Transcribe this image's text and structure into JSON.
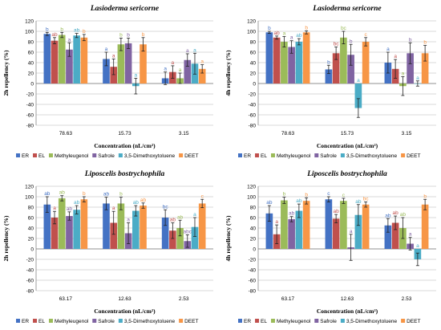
{
  "colors": [
    "#4472C4",
    "#C0504D",
    "#9BBB59",
    "#8064A2",
    "#4BACC6",
    "#F79646"
  ],
  "chart_data": [
    {
      "type": "bar",
      "title": "Lasioderma sericorne",
      "ylabel": "2h repellency (%)",
      "xlabel": "Concentration (nL/cm²)",
      "ylim": [
        -80,
        120
      ],
      "yticks": [
        -80,
        -60,
        -40,
        -20,
        0,
        20,
        40,
        60,
        80,
        100,
        120
      ],
      "grid": true,
      "legend": "bottom",
      "categories": [
        "78.63",
        "15.73",
        "3.15"
      ],
      "series": [
        {
          "name": "ER",
          "values": [
            95,
            47,
            10
          ],
          "errors": [
            3,
            13,
            12
          ],
          "letters": [
            "b",
            "a",
            "a"
          ]
        },
        {
          "name": "EL",
          "values": [
            82,
            32,
            22
          ],
          "errors": [
            6,
            15,
            12
          ],
          "letters": [
            "ab",
            "a",
            "a"
          ]
        },
        {
          "name": "Methyleugenol",
          "values": [
            93,
            75,
            10
          ],
          "errors": [
            5,
            12,
            10
          ],
          "letters": [
            "b",
            "b",
            "a"
          ]
        },
        {
          "name": "Safrole",
          "values": [
            65,
            77,
            45
          ],
          "errors": [
            13,
            10,
            12
          ],
          "letters": [
            "a",
            "b",
            "a"
          ]
        },
        {
          "name": "3,5-Dimethoxytoluene",
          "values": [
            92,
            -5,
            38
          ],
          "errors": [
            4,
            15,
            20
          ],
          "letters": [
            "ab",
            "a",
            "a"
          ]
        },
        {
          "name": "DEET",
          "values": [
            88,
            75,
            28
          ],
          "errors": [
            6,
            13,
            8
          ],
          "letters": [
            "b",
            "b",
            "a"
          ]
        }
      ]
    },
    {
      "type": "bar",
      "title": "Lasioderma sericorne",
      "ylabel": "4h repellency (%)",
      "xlabel": "Concentration (nL/cm²)",
      "ylim": [
        -80,
        120
      ],
      "yticks": [
        -80,
        -60,
        -40,
        -20,
        0,
        20,
        40,
        60,
        80,
        100,
        120
      ],
      "grid": true,
      "legend": "bottom",
      "categories": [
        "78.63",
        "15.73",
        "3.15"
      ],
      "series": [
        {
          "name": "ER",
          "values": [
            98,
            27,
            40
          ],
          "errors": [
            2,
            8,
            20
          ],
          "letters": [
            "b",
            "b",
            "a"
          ]
        },
        {
          "name": "EL",
          "values": [
            88,
            58,
            28
          ],
          "errors": [
            3,
            12,
            18
          ],
          "letters": [
            "ab",
            "bc",
            "a"
          ]
        },
        {
          "name": "Methyleugenol",
          "values": [
            80,
            88,
            -5
          ],
          "errors": [
            10,
            12,
            18
          ],
          "letters": [
            "a",
            "bc",
            "a"
          ]
        },
        {
          "name": "Safrole",
          "values": [
            70,
            55,
            58
          ],
          "errors": [
            12,
            20,
            20
          ],
          "letters": [
            "a",
            "b",
            "b"
          ]
        },
        {
          "name": "3,5-Dimethoxytoluene",
          "values": [
            80,
            -47,
            0
          ],
          "errors": [
            6,
            18,
            5
          ],
          "letters": [
            "ab",
            "a",
            "a"
          ]
        },
        {
          "name": "DEET",
          "values": [
            98,
            80,
            58
          ],
          "errors": [
            3,
            8,
            15
          ],
          "letters": [
            "b",
            "c",
            "b"
          ]
        }
      ]
    },
    {
      "type": "bar",
      "title": "Liposcelis bostrychophila",
      "ylabel": "2h repellency (%)",
      "xlabel": "Concentration (nL/cm²)",
      "ylim": [
        -80,
        120
      ],
      "yticks": [
        -80,
        -60,
        -40,
        -20,
        0,
        20,
        40,
        60,
        80,
        100,
        120
      ],
      "grid": true,
      "legend": "bottom",
      "categories": [
        "63.17",
        "12.63",
        "2.53"
      ],
      "series": [
        {
          "name": "ER",
          "values": [
            85,
            87,
            60
          ],
          "errors": [
            15,
            12,
            15
          ],
          "letters": [
            "ab",
            "ab",
            "bc"
          ]
        },
        {
          "name": "EL",
          "values": [
            60,
            50,
            35
          ],
          "errors": [
            12,
            22,
            15
          ],
          "letters": [
            "a",
            "a",
            "ab"
          ]
        },
        {
          "name": "Methyleugenol",
          "values": [
            97,
            87,
            40
          ],
          "errors": [
            5,
            12,
            15
          ],
          "letters": [
            "ab",
            "b",
            "ab"
          ]
        },
        {
          "name": "Safrole",
          "values": [
            63,
            30,
            15
          ],
          "errors": [
            8,
            20,
            12
          ],
          "letters": [
            "ab",
            "a",
            "abc"
          ]
        },
        {
          "name": "3,5-Dimethoxytoluene",
          "values": [
            75,
            73,
            42
          ],
          "errors": [
            8,
            10,
            18
          ],
          "letters": [
            "ab",
            "ab",
            "a"
          ]
        },
        {
          "name": "DEET",
          "values": [
            95,
            83,
            87
          ],
          "errors": [
            5,
            5,
            8
          ],
          "letters": [
            "b",
            "ab",
            "c"
          ]
        }
      ]
    },
    {
      "type": "bar",
      "title": "Liposcelis bostrychophila",
      "ylabel": "4h repellency (%)",
      "xlabel": "Concentration (nL/cm²)",
      "ylim": [
        -80,
        120
      ],
      "yticks": [
        -80,
        -60,
        -40,
        -20,
        0,
        20,
        40,
        60,
        80,
        100,
        120
      ],
      "grid": true,
      "legend": "bottom",
      "categories": [
        "63.17",
        "12.63",
        "2.53"
      ],
      "series": [
        {
          "name": "ER",
          "values": [
            68,
            95,
            45
          ],
          "errors": [
            15,
            5,
            13
          ],
          "letters": [
            "ab",
            "c",
            "ab"
          ]
        },
        {
          "name": "EL",
          "values": [
            28,
            58,
            50
          ],
          "errors": [
            18,
            8,
            13
          ],
          "letters": [
            "a",
            "ab",
            "ab"
          ]
        },
        {
          "name": "Methyleugenol",
          "values": [
            93,
            92,
            40
          ],
          "errors": [
            6,
            5,
            20
          ],
          "letters": [
            "b",
            "c",
            "ab"
          ]
        },
        {
          "name": "Safrole",
          "values": [
            57,
            3,
            10
          ],
          "errors": [
            5,
            25,
            12
          ],
          "letters": [
            "ab",
            "a",
            "a"
          ]
        },
        {
          "name": "3,5-Dimethoxytoluene",
          "values": [
            73,
            65,
            -20
          ],
          "errors": [
            13,
            20,
            12
          ],
          "letters": [
            "ab",
            "ab",
            "a"
          ]
        },
        {
          "name": "DEET",
          "values": [
            92,
            85,
            85
          ],
          "errors": [
            6,
            5,
            10
          ],
          "letters": [
            "b",
            "bc",
            "b"
          ]
        }
      ]
    }
  ]
}
